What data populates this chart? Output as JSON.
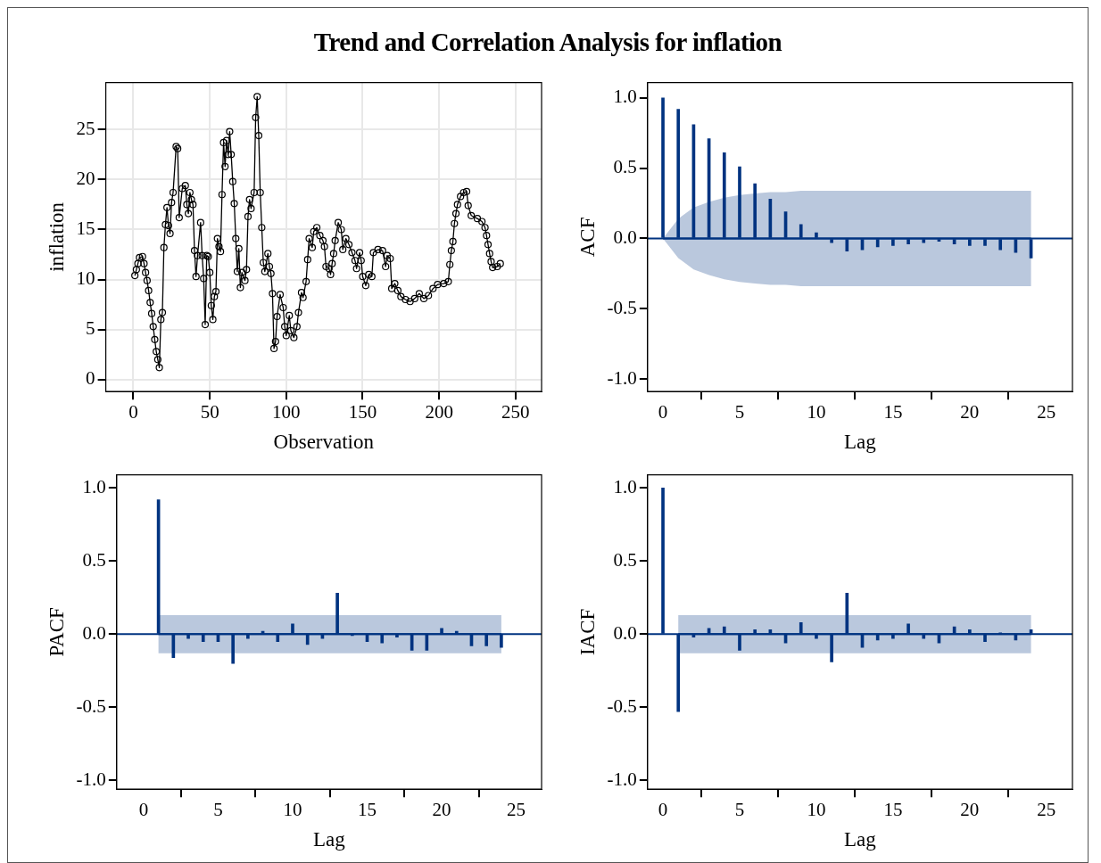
{
  "chart_data": [
    {
      "type": "line",
      "title": "Trend and Correlation Analysis for inflation",
      "xlabel": "Observation",
      "ylabel": "inflation",
      "color": "#000000",
      "marker": "circle",
      "grid": true,
      "xlim": [
        -18,
        267
      ],
      "ylim": [
        -1.2,
        29.7
      ],
      "xticks": [
        0,
        50,
        100,
        150,
        200,
        250
      ],
      "yticks": [
        0,
        5,
        10,
        15,
        20,
        25
      ],
      "x": [
        1,
        2,
        3,
        4,
        6,
        7,
        8,
        9,
        10,
        11,
        12,
        13,
        14,
        15,
        16,
        17,
        18,
        19,
        20,
        21,
        22,
        23,
        24,
        25,
        26,
        28,
        29,
        30,
        32,
        34,
        35,
        36,
        37,
        38,
        39,
        40,
        41,
        42,
        44,
        45,
        46,
        47,
        48,
        49,
        50,
        51,
        52,
        53,
        54,
        55,
        56,
        57,
        58,
        59,
        60,
        61,
        62,
        63,
        64,
        65,
        66,
        67,
        68,
        69,
        70,
        71,
        73,
        74,
        75,
        76,
        77,
        79,
        80,
        81,
        82,
        83,
        84,
        85,
        86,
        88,
        89,
        90,
        91,
        92,
        93,
        94,
        96,
        98,
        99,
        100,
        102,
        103,
        105,
        107,
        108,
        110,
        111,
        113,
        114,
        115,
        117,
        118,
        120,
        122,
        124,
        125,
        126,
        128,
        129,
        130,
        131,
        132,
        134,
        136,
        137,
        139,
        141,
        143,
        145,
        146,
        148,
        149,
        150,
        152,
        154,
        156,
        157,
        160,
        163,
        165,
        166,
        168,
        169,
        171,
        173,
        175,
        178,
        181,
        184,
        187,
        190,
        193,
        196,
        199,
        203,
        206,
        207,
        208,
        209,
        210,
        211,
        212,
        214,
        216,
        218,
        219,
        221,
        225,
        228,
        230,
        231,
        232,
        233,
        234,
        235,
        238,
        240
      ],
      "values": [
        10.4,
        11.0,
        11.6,
        12.2,
        12.3,
        11.6,
        10.7,
        9.9,
        8.9,
        7.7,
        6.6,
        5.3,
        4.0,
        2.8,
        2.0,
        1.2,
        6.0,
        6.7,
        13.2,
        15.5,
        17.2,
        15.4,
        14.6,
        17.7,
        18.7,
        23.3,
        23.1,
        16.2,
        19.1,
        19.4,
        17.5,
        16.6,
        18.7,
        18.0,
        17.5,
        12.9,
        10.3,
        12.4,
        15.7,
        12.4,
        10.1,
        5.5,
        12.4,
        12.3,
        10.7,
        7.4,
        6.0,
        8.3,
        8.8,
        14.1,
        13.3,
        12.8,
        18.5,
        23.7,
        21.3,
        23.9,
        22.5,
        24.8,
        22.5,
        19.8,
        17.6,
        14.1,
        10.8,
        13.1,
        9.2,
        10.7,
        9.9,
        11.0,
        16.3,
        18.0,
        17.1,
        18.7,
        26.2,
        28.3,
        24.4,
        18.7,
        15.2,
        11.7,
        10.8,
        12.6,
        11.3,
        10.6,
        8.6,
        3.1,
        3.8,
        6.3,
        8.5,
        7.2,
        5.3,
        4.4,
        6.4,
        4.9,
        4.2,
        5.3,
        6.7,
        8.7,
        8.2,
        9.8,
        12.0,
        14.1,
        13.2,
        14.8,
        15.2,
        14.4,
        13.9,
        13.3,
        11.3,
        11.1,
        10.5,
        11.6,
        12.6,
        13.9,
        15.7,
        15.0,
        13.0,
        14.1,
        13.5,
        12.7,
        11.9,
        11.1,
        12.7,
        11.9,
        10.3,
        9.4,
        10.5,
        10.3,
        12.7,
        13.0,
        12.9,
        11.3,
        12.4,
        12.1,
        9.1,
        9.6,
        8.9,
        8.3,
        8.0,
        7.8,
        8.1,
        8.6,
        8.1,
        8.4,
        9.1,
        9.5,
        9.6,
        9.8,
        11.5,
        12.9,
        13.8,
        15.6,
        16.6,
        17.5,
        18.3,
        18.7,
        18.8,
        17.4,
        16.4,
        16.1,
        15.8,
        15.2,
        14.4,
        13.5,
        12.6,
        11.8,
        11.2,
        11.3,
        11.6
      ]
    },
    {
      "type": "bar",
      "xlabel": "Lag",
      "ylabel": "ACF",
      "xlim": [
        -1,
        26.7
      ],
      "ylim": [
        -1.09,
        1.11
      ],
      "xticks": [
        0,
        5,
        10,
        15,
        20,
        25
      ],
      "yticks": [
        {
          "value": -1,
          "label": "-1.0"
        },
        {
          "value": -0.5,
          "label": "-0.5"
        },
        {
          "value": 0,
          "label": "0.0"
        },
        {
          "value": 0.5,
          "label": "0.5"
        },
        {
          "value": 1,
          "label": "1.0"
        }
      ],
      "ref_lines": [
        {
          "axis": "y",
          "value": 0,
          "color": "#003380"
        }
      ],
      "series": [
        {
          "type": "line",
          "color": "#003380",
          "marker": "none",
          "x": [
            0,
            1,
            2,
            3,
            4,
            5,
            6,
            7,
            8,
            9,
            10,
            11,
            12,
            13,
            14,
            15,
            16,
            17,
            18,
            19,
            20,
            21,
            22,
            23,
            24
          ],
          "values": [
            0,
            0,
            0,
            0,
            0,
            0,
            0,
            0,
            0,
            0,
            0,
            0,
            0,
            0,
            0,
            0,
            0,
            0,
            0,
            0,
            0,
            0,
            0,
            0,
            0
          ],
          "lower": [
            0,
            -0.14,
            -0.22,
            -0.26,
            -0.29,
            -0.31,
            -0.32,
            -0.33,
            -0.33,
            -0.34,
            -0.34,
            -0.34,
            -0.34,
            -0.34,
            -0.34,
            -0.34,
            -0.34,
            -0.34,
            -0.34,
            -0.34,
            -0.34,
            -0.34,
            -0.34,
            -0.34,
            -0.34
          ],
          "upper": [
            0,
            0.14,
            0.22,
            0.26,
            0.29,
            0.31,
            0.32,
            0.33,
            0.33,
            0.34,
            0.34,
            0.34,
            0.34,
            0.34,
            0.34,
            0.34,
            0.34,
            0.34,
            0.34,
            0.34,
            0.34,
            0.34,
            0.34,
            0.34,
            0.34
          ]
        },
        {
          "type": "bar",
          "color": "#003380",
          "x": [
            0,
            1,
            2,
            3,
            4,
            5,
            6,
            7,
            8,
            9,
            10,
            11,
            12,
            13,
            14,
            15,
            16,
            17,
            18,
            19,
            20,
            21,
            22,
            23,
            24
          ],
          "values": [
            1.0,
            0.92,
            0.81,
            0.71,
            0.61,
            0.51,
            0.39,
            0.28,
            0.19,
            0.1,
            0.04,
            -0.03,
            -0.09,
            -0.08,
            -0.06,
            -0.05,
            -0.04,
            -0.03,
            -0.02,
            -0.04,
            -0.05,
            -0.05,
            -0.08,
            -0.1,
            -0.14
          ]
        }
      ]
    },
    {
      "type": "bar",
      "xlabel": "Lag",
      "ylabel": "PACF",
      "xlim": [
        -1.8,
        26.7
      ],
      "ylim": [
        -1.06,
        1.09
      ],
      "xticks": [
        0,
        5,
        10,
        15,
        20,
        25
      ],
      "yticks": [
        {
          "value": -1,
          "label": "-1.0"
        },
        {
          "value": -0.5,
          "label": "-0.5"
        },
        {
          "value": 0,
          "label": "0.0"
        },
        {
          "value": 0.5,
          "label": "0.5"
        },
        {
          "value": 1,
          "label": "1.0"
        }
      ],
      "ref_lines": [
        {
          "axis": "y",
          "value": 0,
          "color": "#003380"
        }
      ],
      "series": [
        {
          "type": "line",
          "color": "#003380",
          "marker": "none",
          "x": [
            1,
            24
          ],
          "values": [
            0,
            0
          ],
          "lower": [
            -0.13,
            -0.13
          ],
          "upper": [
            0.13,
            0.13
          ]
        },
        {
          "type": "bar",
          "color": "#003380",
          "x": [
            1,
            2,
            3,
            4,
            5,
            6,
            7,
            8,
            9,
            10,
            11,
            12,
            13,
            14,
            15,
            16,
            17,
            18,
            19,
            20,
            21,
            22,
            23,
            24
          ],
          "values": [
            0.92,
            -0.16,
            -0.03,
            -0.05,
            -0.05,
            -0.2,
            -0.03,
            0.02,
            -0.05,
            0.07,
            -0.07,
            -0.03,
            0.28,
            -0.01,
            -0.05,
            -0.06,
            -0.02,
            -0.11,
            -0.11,
            0.04,
            0.02,
            -0.08,
            -0.08,
            -0.09
          ]
        }
      ]
    },
    {
      "type": "bar",
      "xlabel": "Lag",
      "ylabel": "IACF",
      "xlim": [
        -1,
        26.7
      ],
      "ylim": [
        -1.06,
        1.09
      ],
      "xticks": [
        0,
        5,
        10,
        15,
        20,
        25
      ],
      "yticks": [
        {
          "value": -1,
          "label": "-1.0"
        },
        {
          "value": -0.5,
          "label": "-0.5"
        },
        {
          "value": 0,
          "label": "0.0"
        },
        {
          "value": 0.5,
          "label": "0.5"
        },
        {
          "value": 1,
          "label": "1.0"
        }
      ],
      "ref_lines": [
        {
          "axis": "y",
          "value": 0,
          "color": "#003380"
        }
      ],
      "series": [
        {
          "type": "line",
          "color": "#003380",
          "marker": "none",
          "x": [
            1,
            24
          ],
          "values": [
            0,
            0
          ],
          "lower": [
            -0.13,
            -0.13
          ],
          "upper": [
            0.13,
            0.13
          ]
        },
        {
          "type": "bar",
          "color": "#003380",
          "x": [
            0,
            1,
            2,
            3,
            4,
            5,
            6,
            7,
            8,
            9,
            10,
            11,
            12,
            13,
            14,
            15,
            16,
            17,
            18,
            19,
            20,
            21,
            22,
            23,
            24
          ],
          "values": [
            1.0,
            -0.53,
            -0.02,
            0.04,
            0.05,
            -0.11,
            0.03,
            0.03,
            -0.06,
            0.08,
            -0.03,
            -0.19,
            0.28,
            -0.09,
            -0.04,
            -0.03,
            0.07,
            -0.03,
            -0.06,
            0.05,
            0.03,
            -0.05,
            0.01,
            -0.04,
            0.03
          ]
        }
      ]
    }
  ]
}
